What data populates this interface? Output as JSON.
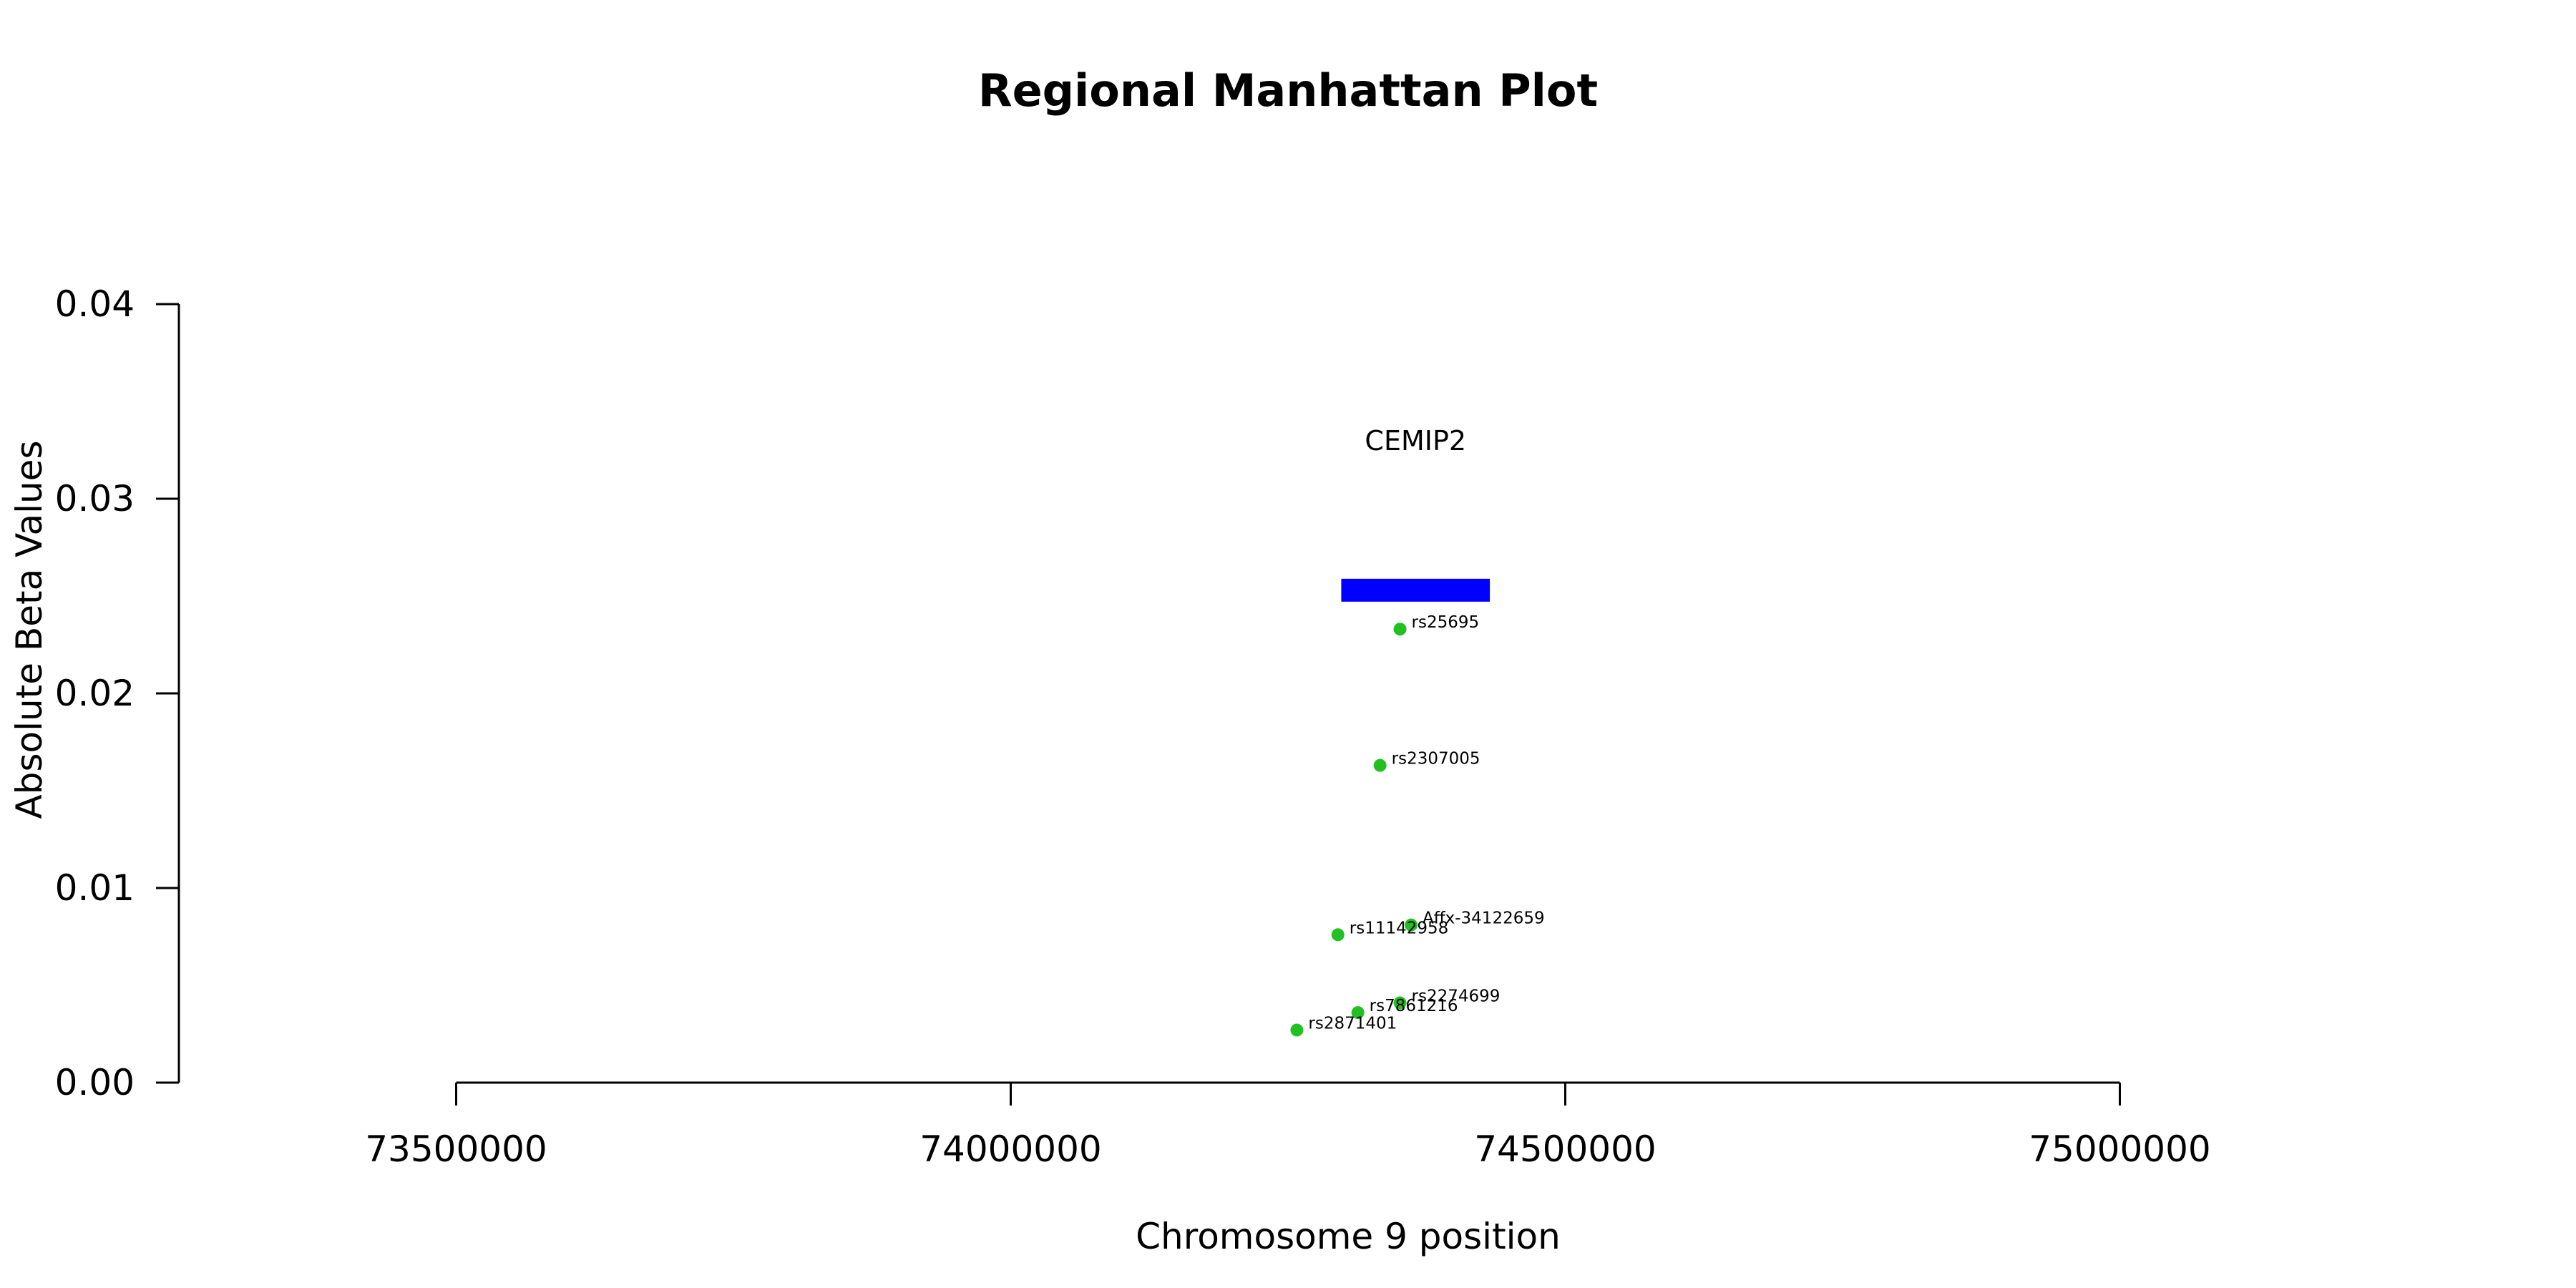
{
  "chart_data": {
    "type": "scatter",
    "title": "Regional Manhattan Plot",
    "xlabel": "Chromosome 9 position",
    "ylabel": "Absolute Beta Values",
    "xlim": [
      73250000,
      75250000
    ],
    "ylim": [
      0,
      0.04
    ],
    "x_ticks": [
      73500000,
      74000000,
      74500000,
      75000000
    ],
    "y_ticks": [
      0.0,
      0.01,
      0.02,
      0.03,
      0.04
    ],
    "y_tick_labels": [
      "0.00",
      "0.01",
      "0.02",
      "0.03",
      "0.04"
    ],
    "x_tick_labels": [
      "73500000",
      "74000000",
      "74500000",
      "75000000"
    ],
    "grid": false,
    "point_color": "#22c022",
    "gene_color": "#0000ff",
    "genes": [
      {
        "name": "CEMIP2",
        "start": 74298000,
        "end": 74432000,
        "y": 0.0253,
        "label_y": 0.0325
      }
    ],
    "points": [
      {
        "label": "rs25695",
        "x": 74351000,
        "y": 0.0233
      },
      {
        "label": "rs2307005",
        "x": 74333000,
        "y": 0.0163
      },
      {
        "label": "Affx-34122659",
        "x": 74361000,
        "y": 0.0081
      },
      {
        "label": "rs11142958",
        "x": 74295000,
        "y": 0.0076
      },
      {
        "label": "rs2274699",
        "x": 74351000,
        "y": 0.0041
      },
      {
        "label": "rs7861216",
        "x": 74313000,
        "y": 0.0036
      },
      {
        "label": "rs2871401",
        "x": 74258000,
        "y": 0.0027
      }
    ]
  }
}
